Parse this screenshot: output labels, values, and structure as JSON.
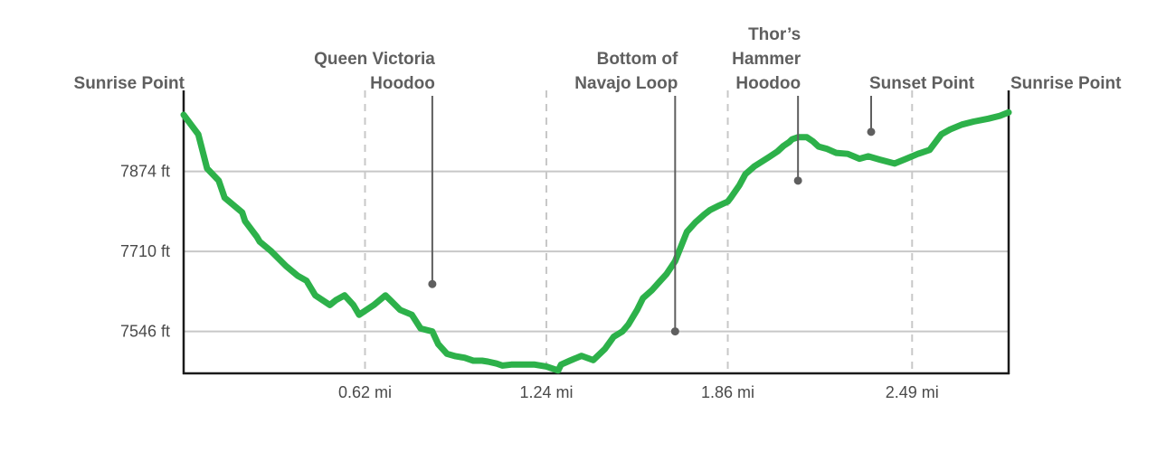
{
  "chart_data": {
    "type": "line",
    "title": "",
    "xlabel": "",
    "ylabel": "",
    "xlim": [
      0,
      2.82
    ],
    "ylim": [
      7460,
      8040
    ],
    "yticks": [
      {
        "value": 7874,
        "label": "7874 ft"
      },
      {
        "value": 7710,
        "label": "7710 ft"
      },
      {
        "value": 7546,
        "label": "7546 ft"
      }
    ],
    "xticks": [
      {
        "value": 0.62,
        "label": "0.62 mi"
      },
      {
        "value": 1.24,
        "label": "1.24 mi"
      },
      {
        "value": 1.86,
        "label": "1.86 mi"
      },
      {
        "value": 2.49,
        "label": "2.49 mi"
      }
    ],
    "grid": {
      "horizontal": true,
      "vertical": "dashed"
    },
    "series": [
      {
        "color": "#2db14a",
        "x": [
          0,
          0.05,
          0.08,
          0.12,
          0.14,
          0.17,
          0.2,
          0.21,
          0.25,
          0.26,
          0.3,
          0.35,
          0.39,
          0.42,
          0.45,
          0.5,
          0.52,
          0.55,
          0.58,
          0.6,
          0.65,
          0.69,
          0.71,
          0.74,
          0.78,
          0.81,
          0.85,
          0.87,
          0.9,
          0.93,
          0.96,
          0.99,
          1.02,
          1.04,
          1.07,
          1.09,
          1.12,
          1.16,
          1.2,
          1.24,
          1.28,
          1.29,
          1.32,
          1.36,
          1.4,
          1.44,
          1.47,
          1.5,
          1.52,
          1.55,
          1.57,
          1.6,
          1.63,
          1.65,
          1.68,
          1.7,
          1.72,
          1.75,
          1.78,
          1.8,
          1.83,
          1.86,
          1.87,
          1.9,
          1.92,
          1.95,
          2.0,
          2.03,
          2.05,
          2.07,
          2.08,
          2.1,
          2.13,
          2.15,
          2.17,
          2.2,
          2.23,
          2.27,
          2.29,
          2.31,
          2.34,
          2.38,
          2.43,
          2.47,
          2.51,
          2.55,
          2.59,
          2.62,
          2.66,
          2.7,
          2.75,
          2.79,
          2.82
        ],
        "y": [
          7990,
          7950,
          7880,
          7855,
          7820,
          7805,
          7790,
          7772,
          7740,
          7730,
          7710,
          7680,
          7660,
          7650,
          7620,
          7600,
          7610,
          7620,
          7600,
          7580,
          7600,
          7620,
          7608,
          7590,
          7580,
          7552,
          7546,
          7520,
          7500,
          7495,
          7492,
          7486,
          7486,
          7484,
          7480,
          7476,
          7478,
          7478,
          7478,
          7474,
          7466,
          7478,
          7486,
          7496,
          7487,
          7510,
          7535,
          7546,
          7560,
          7590,
          7614,
          7630,
          7650,
          7663,
          7690,
          7720,
          7750,
          7770,
          7786,
          7795,
          7804,
          7812,
          7820,
          7846,
          7868,
          7884,
          7903,
          7915,
          7926,
          7934,
          7940,
          7944,
          7944,
          7936,
          7925,
          7920,
          7912,
          7910,
          7905,
          7900,
          7905,
          7898,
          7890,
          7900,
          7910,
          7918,
          7950,
          7960,
          7970,
          7976,
          7982,
          7988,
          7995
        ]
      }
    ],
    "annotations": [
      {
        "lines": [
          "Sunrise Point"
        ],
        "x": 0,
        "y": 7995,
        "leader": false
      },
      {
        "lines": [
          "Queen Victoria",
          "Hoodoo"
        ],
        "x": 0.85,
        "y": 7643,
        "leader": true
      },
      {
        "lines": [
          "Bottom of",
          "Navajo Loop"
        ],
        "x": 1.68,
        "y": 7546,
        "leader": true
      },
      {
        "lines": [
          "Thor’s",
          "Hammer",
          "Hoodoo"
        ],
        "x": 2.1,
        "y": 7855,
        "leader": true
      },
      {
        "lines": [
          "Sunset Point"
        ],
        "x": 2.35,
        "y": 7955,
        "leader": true
      },
      {
        "lines": [
          "Sunrise Point"
        ],
        "x": 2.82,
        "y": 7995,
        "leader": false
      }
    ]
  }
}
